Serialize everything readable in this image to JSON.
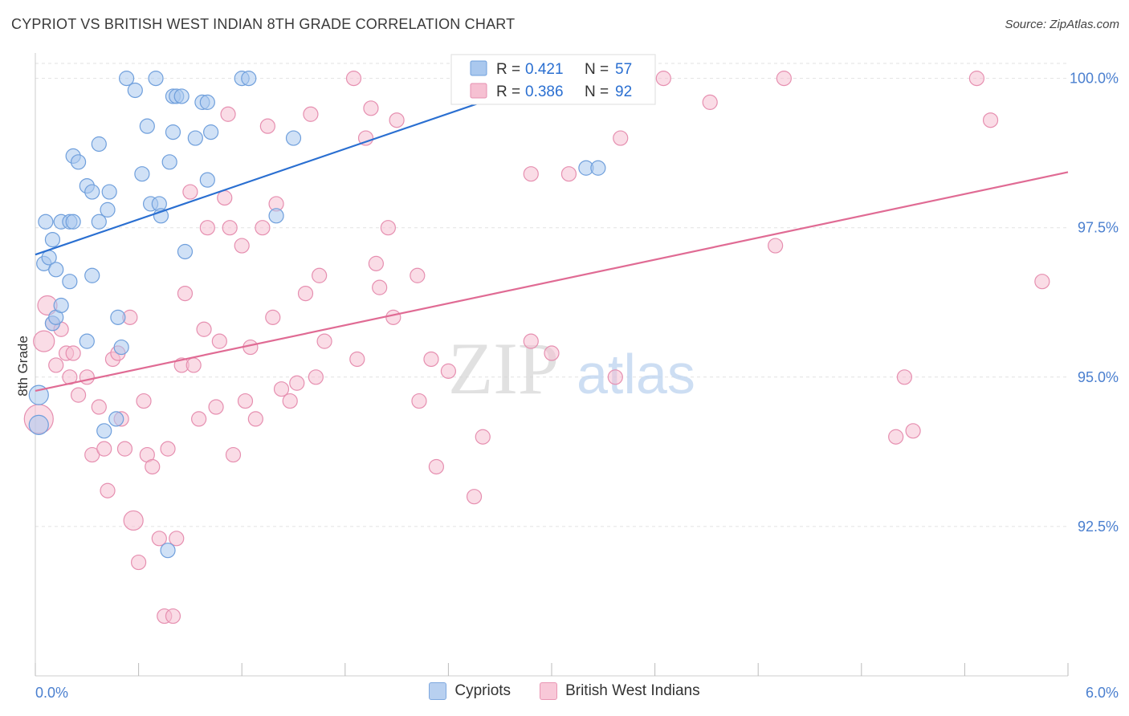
{
  "header": {
    "title": "CYPRIOT VS BRITISH WEST INDIAN 8TH GRADE CORRELATION CHART",
    "source": "Source: ZipAtlas.com"
  },
  "watermark": {
    "zip": "ZIP",
    "atlas": "atlas"
  },
  "colors": {
    "blue_fill": "#aac8ee",
    "blue_stroke": "#6f9fdc",
    "blue_line": "#2a6fd1",
    "pink_fill": "#f6c0d2",
    "pink_stroke": "#e68fb0",
    "pink_line": "#e06b94",
    "tick_label": "#4a7fcf",
    "grid": "#e2e2e2"
  },
  "legend_top": {
    "rows": [
      {
        "r_label": "R = ",
        "r_value": "0.421",
        "n_label": "N = ",
        "n_value": "57"
      },
      {
        "r_label": "R = ",
        "r_value": "0.386",
        "n_label": "N = ",
        "n_value": "92"
      }
    ]
  },
  "legend_bottom": {
    "items": [
      "Cypriots",
      "British West Indians"
    ]
  },
  "chart_data": {
    "type": "scatter",
    "title": "CYPRIOT VS BRITISH WEST INDIAN 8TH GRADE CORRELATION CHART",
    "xlabel": "",
    "ylabel": "8th Grade",
    "xlim": [
      0,
      6
    ],
    "ylim": [
      90.0,
      100.25
    ],
    "x_tick_labels": [
      "0.0%",
      "6.0%"
    ],
    "y_ticks": [
      92.5,
      95.0,
      97.5,
      100.0
    ],
    "y_tick_labels": [
      "92.5%",
      "95.0%",
      "97.5%",
      "100.0%"
    ],
    "grid": true,
    "series": [
      {
        "name": "Cypriots",
        "r": 0.421,
        "n": 57,
        "trend": {
          "x": [
            0.0,
            3.0
          ],
          "y": [
            97.05,
            100.0
          ]
        },
        "points": [
          [
            0.02,
            94.7,
            12
          ],
          [
            0.02,
            94.2,
            12
          ],
          [
            0.05,
            96.9,
            9
          ],
          [
            0.06,
            97.6,
            9
          ],
          [
            0.08,
            97.0,
            9
          ],
          [
            0.1,
            97.3,
            9
          ],
          [
            0.12,
            96.8,
            9
          ],
          [
            0.1,
            95.9,
            9
          ],
          [
            0.12,
            96.0,
            9
          ],
          [
            0.15,
            96.2,
            9
          ],
          [
            0.15,
            97.6,
            9
          ],
          [
            0.2,
            96.6,
            9
          ],
          [
            0.2,
            97.6,
            9
          ],
          [
            0.22,
            97.6,
            9
          ],
          [
            0.22,
            98.7,
            9
          ],
          [
            0.25,
            98.6,
            9
          ],
          [
            0.3,
            98.2,
            9
          ],
          [
            0.33,
            98.1,
            9
          ],
          [
            0.3,
            95.6,
            9
          ],
          [
            0.33,
            96.7,
            9
          ],
          [
            0.37,
            97.6,
            9
          ],
          [
            0.37,
            98.9,
            9
          ],
          [
            0.42,
            97.8,
            9
          ],
          [
            0.43,
            98.1,
            9
          ],
          [
            0.48,
            96.0,
            9
          ],
          [
            0.5,
            95.5,
            9
          ],
          [
            0.47,
            94.3,
            9
          ],
          [
            0.4,
            94.1,
            9
          ],
          [
            0.53,
            100.0,
            9
          ],
          [
            0.58,
            99.8,
            9
          ],
          [
            0.62,
            98.4,
            9
          ],
          [
            0.65,
            99.2,
            9
          ],
          [
            0.67,
            97.9,
            9
          ],
          [
            0.7,
            100.0,
            9
          ],
          [
            0.72,
            97.9,
            9
          ],
          [
            0.73,
            97.7,
            9
          ],
          [
            0.78,
            98.6,
            9
          ],
          [
            0.8,
            99.7,
            9
          ],
          [
            0.8,
            99.1,
            9
          ],
          [
            0.82,
            99.7,
            9
          ],
          [
            0.85,
            99.7,
            9
          ],
          [
            0.87,
            97.1,
            9
          ],
          [
            0.93,
            99.0,
            9
          ],
          [
            0.97,
            99.6,
            9
          ],
          [
            1.0,
            99.6,
            9
          ],
          [
            1.0,
            98.3,
            9
          ],
          [
            1.02,
            99.1,
            9
          ],
          [
            1.2,
            100.0,
            9
          ],
          [
            1.24,
            100.0,
            9
          ],
          [
            1.4,
            97.7,
            9
          ],
          [
            1.5,
            99.0,
            9
          ],
          [
            0.77,
            92.1,
            9
          ],
          [
            3.0,
            100.0,
            9
          ],
          [
            3.23,
            100.0,
            9
          ],
          [
            3.25,
            100.0,
            9
          ],
          [
            3.2,
            98.5,
            9
          ],
          [
            3.27,
            98.5,
            9
          ]
        ]
      },
      {
        "name": "British West Indians",
        "r": 0.386,
        "n": 92,
        "trend": {
          "x": [
            0.0,
            6.0
          ],
          "y": [
            94.77,
            98.43
          ]
        },
        "points": [
          [
            0.02,
            94.3,
            18
          ],
          [
            0.05,
            95.6,
            13
          ],
          [
            0.07,
            96.2,
            12
          ],
          [
            0.1,
            95.9,
            9
          ],
          [
            0.12,
            95.2,
            9
          ],
          [
            0.15,
            95.8,
            9
          ],
          [
            0.18,
            95.4,
            9
          ],
          [
            0.2,
            95.0,
            9
          ],
          [
            0.22,
            95.4,
            9
          ],
          [
            0.25,
            94.7,
            9
          ],
          [
            0.3,
            95.0,
            9
          ],
          [
            0.33,
            93.7,
            9
          ],
          [
            0.37,
            94.5,
            9
          ],
          [
            0.4,
            93.8,
            9
          ],
          [
            0.42,
            93.1,
            9
          ],
          [
            0.45,
            95.3,
            9
          ],
          [
            0.48,
            95.4,
            9
          ],
          [
            0.5,
            94.3,
            9
          ],
          [
            0.52,
            93.8,
            9
          ],
          [
            0.55,
            96.0,
            9
          ],
          [
            0.57,
            92.6,
            12
          ],
          [
            0.6,
            91.9,
            9
          ],
          [
            0.63,
            94.6,
            9
          ],
          [
            0.65,
            93.7,
            9
          ],
          [
            0.68,
            93.5,
            9
          ],
          [
            0.72,
            92.3,
            9
          ],
          [
            0.75,
            91.0,
            9
          ],
          [
            0.77,
            93.8,
            9
          ],
          [
            0.8,
            91.0,
            9
          ],
          [
            0.82,
            92.3,
            9
          ],
          [
            0.85,
            95.2,
            9
          ],
          [
            0.87,
            96.4,
            9
          ],
          [
            0.9,
            98.1,
            9
          ],
          [
            0.92,
            95.2,
            9
          ],
          [
            0.95,
            94.3,
            9
          ],
          [
            0.98,
            95.8,
            9
          ],
          [
            1.0,
            97.5,
            9
          ],
          [
            1.05,
            94.5,
            9
          ],
          [
            1.07,
            95.6,
            9
          ],
          [
            1.1,
            98.0,
            9
          ],
          [
            1.12,
            99.4,
            9
          ],
          [
            1.13,
            97.5,
            9
          ],
          [
            1.15,
            93.7,
            9
          ],
          [
            1.2,
            97.2,
            9
          ],
          [
            1.22,
            94.6,
            9
          ],
          [
            1.25,
            95.5,
            9
          ],
          [
            1.28,
            94.3,
            9
          ],
          [
            1.32,
            97.5,
            9
          ],
          [
            1.35,
            99.2,
            9
          ],
          [
            1.4,
            97.9,
            9
          ],
          [
            1.38,
            96.0,
            9
          ],
          [
            1.43,
            94.8,
            9
          ],
          [
            1.48,
            94.6,
            9
          ],
          [
            1.52,
            94.9,
            9
          ],
          [
            1.57,
            96.4,
            9
          ],
          [
            1.6,
            99.4,
            9
          ],
          [
            1.63,
            95.0,
            9
          ],
          [
            1.65,
            96.7,
            9
          ],
          [
            1.68,
            95.6,
            9
          ],
          [
            1.85,
            100.0,
            9
          ],
          [
            1.87,
            95.3,
            9
          ],
          [
            1.92,
            99.0,
            9
          ],
          [
            1.95,
            99.5,
            9
          ],
          [
            1.98,
            96.9,
            9
          ],
          [
            2.0,
            96.5,
            9
          ],
          [
            2.05,
            97.5,
            9
          ],
          [
            2.08,
            96.0,
            9
          ],
          [
            2.1,
            99.3,
            9
          ],
          [
            2.23,
            94.6,
            9
          ],
          [
            2.22,
            96.7,
            9
          ],
          [
            2.3,
            95.3,
            9
          ],
          [
            2.33,
            93.5,
            9
          ],
          [
            2.4,
            95.1,
            9
          ],
          [
            2.55,
            93.0,
            9
          ],
          [
            2.6,
            94.0,
            9
          ],
          [
            2.88,
            98.4,
            9
          ],
          [
            2.88,
            95.6,
            9
          ],
          [
            3.0,
            95.4,
            9
          ],
          [
            3.37,
            95.0,
            9
          ],
          [
            3.4,
            99.0,
            9
          ],
          [
            3.52,
            99.9,
            9
          ],
          [
            3.65,
            100.0,
            9
          ],
          [
            3.92,
            99.6,
            9
          ],
          [
            4.3,
            97.2,
            9
          ],
          [
            4.35,
            100.0,
            9
          ],
          [
            5.0,
            94.0,
            9
          ],
          [
            5.05,
            95.0,
            9
          ],
          [
            5.1,
            94.1,
            9
          ],
          [
            5.47,
            100.0,
            9
          ],
          [
            5.55,
            99.3,
            9
          ],
          [
            5.85,
            96.6,
            9
          ],
          [
            3.1,
            98.4,
            9
          ]
        ]
      }
    ]
  }
}
